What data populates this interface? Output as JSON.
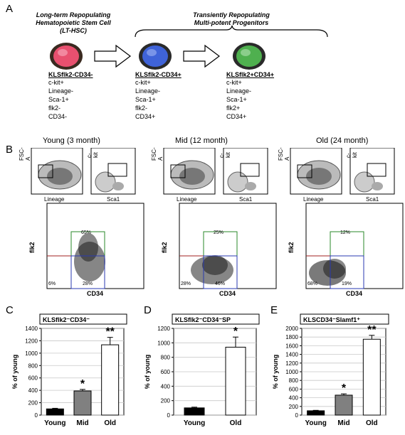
{
  "panelA": {
    "letter": "A",
    "lt_title": [
      "Long-term Repopulating",
      "Hematopoietic Stem Cell",
      "(LT-HSC)"
    ],
    "mpp_title": [
      "Transiently Repopulating",
      "Multi-potent Progenitors"
    ],
    "populations": [
      {
        "name": "KLSflk2-CD34-",
        "markers": [
          "c-kit+",
          "Lineage-",
          "Sca-1+",
          "flk2-",
          "CD34-"
        ],
        "color": "#e8506f"
      },
      {
        "name": "KLSflk2-CD34+",
        "markers": [
          "c-kit+",
          "Lineage-",
          "Sca-1+",
          "flk2-",
          "CD34+"
        ],
        "color": "#3f63d8"
      },
      {
        "name": "KLSflk2+CD34+",
        "markers": [
          "c-kit+",
          "Lineage-",
          "Sca-1+",
          "flk2+",
          "CD34+"
        ],
        "color": "#4fb04f"
      }
    ]
  },
  "panelB": {
    "letter": "B",
    "groups": [
      {
        "title": "Young (3 month)",
        "pct_top": "65%",
        "pct_bl": "6%",
        "pct_br": "28%"
      },
      {
        "title": "Mid (12 month)",
        "pct_top": "25%",
        "pct_bl": "28%",
        "pct_br": "46%"
      },
      {
        "title": "Old (24 month)",
        "pct_top": "12%",
        "pct_bl": "68%",
        "pct_br": "19%"
      }
    ],
    "labels": {
      "fsc": "FSC-A",
      "ckit": "c-kit",
      "lineage": "Lineage",
      "sca1": "Sca1",
      "flk2": "flk2",
      "cd34": "CD34"
    }
  },
  "chart_data": [
    {
      "type": "bar",
      "letter": "C",
      "title": "KLSflk2⁻CD34⁻",
      "categories": [
        "Young",
        "Mid",
        "Old"
      ],
      "values": [
        100,
        390,
        1135
      ],
      "errors": [
        10,
        25,
        120
      ],
      "ylabel": "% of young",
      "ylim": [
        0,
        1400
      ],
      "yticks": [
        0,
        200,
        400,
        600,
        800,
        1000,
        1200,
        1400
      ],
      "significance": [
        "",
        "*",
        "**"
      ],
      "bar_colors": [
        "#000000",
        "#808080",
        "#ffffff"
      ]
    },
    {
      "type": "bar",
      "letter": "D",
      "title": "KLSflk2⁻CD34⁻SP",
      "categories": [
        "Young",
        "Old"
      ],
      "values": [
        100,
        940
      ],
      "errors": [
        10,
        140
      ],
      "ylabel": "% of young",
      "ylim": [
        0,
        1200
      ],
      "yticks": [
        0,
        200,
        400,
        600,
        800,
        1000,
        1200
      ],
      "significance": [
        "",
        "*"
      ],
      "bar_colors": [
        "#000000",
        "#ffffff"
      ]
    },
    {
      "type": "bar",
      "letter": "E",
      "title": "KLSCD34⁻Slamf1⁺",
      "categories": [
        "Young",
        "Mid",
        "Old"
      ],
      "values": [
        100,
        460,
        1750
      ],
      "errors": [
        10,
        30,
        90
      ],
      "ylabel": "% of young",
      "ylim": [
        0,
        2000
      ],
      "yticks": [
        0,
        200,
        400,
        600,
        800,
        1000,
        1200,
        1400,
        1600,
        1800,
        2000
      ],
      "significance": [
        "",
        "*",
        "**"
      ],
      "bar_colors": [
        "#000000",
        "#808080",
        "#ffffff"
      ]
    }
  ]
}
